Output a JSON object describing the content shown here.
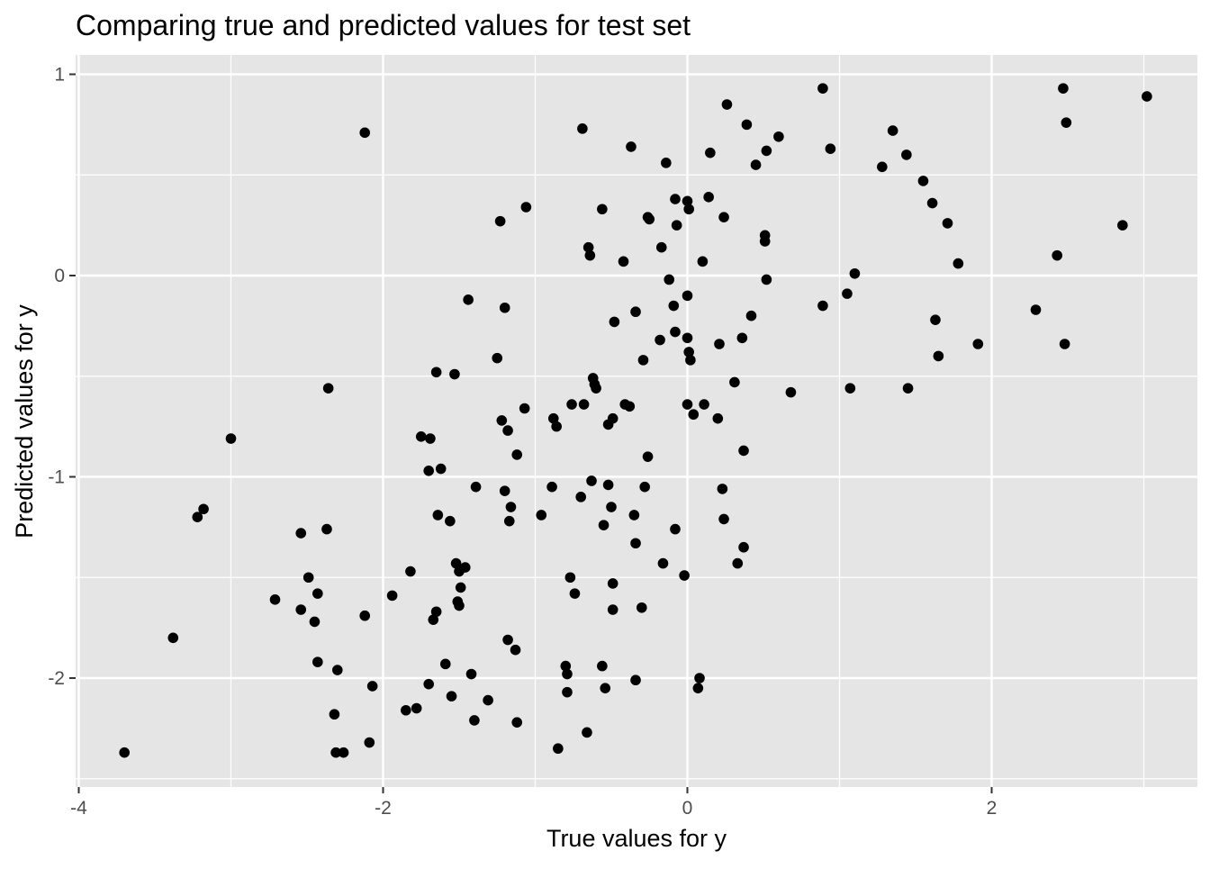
{
  "chart_data": {
    "type": "scatter",
    "title": "Comparing true and predicted values for test set",
    "xlabel": "True values for y",
    "ylabel": "Predicted values for y",
    "xlim": [
      -4.0,
      3.0
    ],
    "ylim": [
      -2.5,
      1.0
    ],
    "x_ticks": [
      -4,
      -2,
      0,
      2
    ],
    "x_tick_labels": [
      "-4",
      "-2",
      "0",
      "2"
    ],
    "y_ticks": [
      -2,
      -1,
      0,
      1
    ],
    "y_tick_labels": [
      "-2",
      "-1",
      "0",
      "1"
    ],
    "grid": true,
    "legend": "none",
    "colors": {
      "panel": "#e5e5e5",
      "grid": "#ffffff",
      "point": "#000000",
      "tick_text": "#4d4d4d",
      "tick_line": "#333333"
    },
    "points": [
      {
        "x": -3.7,
        "y": -2.37
      },
      {
        "x": -3.38,
        "y": -1.8
      },
      {
        "x": -3.22,
        "y": -1.2
      },
      {
        "x": -3.18,
        "y": -1.16
      },
      {
        "x": -3.0,
        "y": -0.81
      },
      {
        "x": -2.71,
        "y": -1.61
      },
      {
        "x": -2.54,
        "y": -1.66
      },
      {
        "x": -2.54,
        "y": -1.28
      },
      {
        "x": -2.49,
        "y": -1.5
      },
      {
        "x": -2.45,
        "y": -1.72
      },
      {
        "x": -2.43,
        "y": -1.58
      },
      {
        "x": -2.43,
        "y": -1.92
      },
      {
        "x": -2.37,
        "y": -1.26
      },
      {
        "x": -2.36,
        "y": -0.56
      },
      {
        "x": -2.32,
        "y": -2.18
      },
      {
        "x": -2.31,
        "y": -2.37
      },
      {
        "x": -2.3,
        "y": -1.96
      },
      {
        "x": -2.26,
        "y": -2.37
      },
      {
        "x": -2.12,
        "y": -1.69
      },
      {
        "x": -2.12,
        "y": 0.71
      },
      {
        "x": -2.09,
        "y": -2.32
      },
      {
        "x": -2.07,
        "y": -2.04
      },
      {
        "x": -1.94,
        "y": -1.59
      },
      {
        "x": -1.85,
        "y": -2.16
      },
      {
        "x": -1.82,
        "y": -1.47
      },
      {
        "x": -1.78,
        "y": -2.15
      },
      {
        "x": -1.75,
        "y": -0.8
      },
      {
        "x": -1.7,
        "y": -2.03
      },
      {
        "x": -1.7,
        "y": -0.97
      },
      {
        "x": -1.69,
        "y": -0.81
      },
      {
        "x": -1.67,
        "y": -1.71
      },
      {
        "x": -1.65,
        "y": -1.67
      },
      {
        "x": -1.65,
        "y": -0.48
      },
      {
        "x": -1.64,
        "y": -1.19
      },
      {
        "x": -1.62,
        "y": -0.96
      },
      {
        "x": -1.59,
        "y": -1.93
      },
      {
        "x": -1.56,
        "y": -1.22
      },
      {
        "x": -1.55,
        "y": -2.09
      },
      {
        "x": -1.53,
        "y": -0.49
      },
      {
        "x": -1.52,
        "y": -1.43
      },
      {
        "x": -1.51,
        "y": -1.62
      },
      {
        "x": -1.5,
        "y": -1.64
      },
      {
        "x": -1.5,
        "y": -1.47
      },
      {
        "x": -1.49,
        "y": -1.55
      },
      {
        "x": -1.46,
        "y": -1.45
      },
      {
        "x": -1.44,
        "y": -0.12
      },
      {
        "x": -1.42,
        "y": -1.98
      },
      {
        "x": -1.4,
        "y": -2.21
      },
      {
        "x": -1.39,
        "y": -1.05
      },
      {
        "x": -1.31,
        "y": -2.11
      },
      {
        "x": -1.25,
        "y": -0.41
      },
      {
        "x": -1.23,
        "y": 0.27
      },
      {
        "x": -1.22,
        "y": -0.72
      },
      {
        "x": -1.2,
        "y": -1.07
      },
      {
        "x": -1.2,
        "y": -0.16
      },
      {
        "x": -1.18,
        "y": -1.81
      },
      {
        "x": -1.18,
        "y": -0.77
      },
      {
        "x": -1.17,
        "y": -1.22
      },
      {
        "x": -1.16,
        "y": -1.15
      },
      {
        "x": -1.13,
        "y": -1.86
      },
      {
        "x": -1.12,
        "y": -2.22
      },
      {
        "x": -1.12,
        "y": -0.89
      },
      {
        "x": -1.07,
        "y": -0.66
      },
      {
        "x": -1.06,
        "y": 0.34
      },
      {
        "x": -0.96,
        "y": -1.19
      },
      {
        "x": -0.89,
        "y": -1.05
      },
      {
        "x": -0.88,
        "y": -0.71
      },
      {
        "x": -0.86,
        "y": -0.75
      },
      {
        "x": -0.85,
        "y": -2.35
      },
      {
        "x": -0.8,
        "y": -1.94
      },
      {
        "x": -0.79,
        "y": -2.07
      },
      {
        "x": -0.79,
        "y": -1.98
      },
      {
        "x": -0.77,
        "y": -1.5
      },
      {
        "x": -0.76,
        "y": -0.64
      },
      {
        "x": -0.74,
        "y": -1.58
      },
      {
        "x": -0.7,
        "y": -1.1
      },
      {
        "x": -0.69,
        "y": 0.73
      },
      {
        "x": -0.68,
        "y": -0.64
      },
      {
        "x": -0.66,
        "y": -2.27
      },
      {
        "x": -0.65,
        "y": 0.14
      },
      {
        "x": -0.64,
        "y": 0.1
      },
      {
        "x": -0.63,
        "y": -1.02
      },
      {
        "x": -0.62,
        "y": -0.51
      },
      {
        "x": -0.61,
        "y": -0.54
      },
      {
        "x": -0.6,
        "y": -0.56
      },
      {
        "x": -0.56,
        "y": 0.33
      },
      {
        "x": -0.56,
        "y": -1.94
      },
      {
        "x": -0.55,
        "y": -1.24
      },
      {
        "x": -0.54,
        "y": -2.05
      },
      {
        "x": -0.52,
        "y": -1.04
      },
      {
        "x": -0.52,
        "y": -0.74
      },
      {
        "x": -0.5,
        "y": -1.15
      },
      {
        "x": -0.49,
        "y": -0.71
      },
      {
        "x": -0.49,
        "y": -1.53
      },
      {
        "x": -0.49,
        "y": -1.66
      },
      {
        "x": -0.48,
        "y": -0.23
      },
      {
        "x": -0.42,
        "y": 0.07
      },
      {
        "x": -0.41,
        "y": -0.64
      },
      {
        "x": -0.38,
        "y": -0.65
      },
      {
        "x": -0.37,
        "y": 0.64
      },
      {
        "x": -0.35,
        "y": -1.19
      },
      {
        "x": -0.34,
        "y": -1.33
      },
      {
        "x": -0.34,
        "y": -0.18
      },
      {
        "x": -0.34,
        "y": -2.01
      },
      {
        "x": -0.3,
        "y": -1.65
      },
      {
        "x": -0.29,
        "y": -0.42
      },
      {
        "x": -0.28,
        "y": -1.05
      },
      {
        "x": -0.26,
        "y": -0.9
      },
      {
        "x": -0.26,
        "y": 0.29
      },
      {
        "x": -0.25,
        "y": 0.28
      },
      {
        "x": -0.18,
        "y": -0.32
      },
      {
        "x": -0.17,
        "y": 0.14
      },
      {
        "x": -0.16,
        "y": -1.43
      },
      {
        "x": -0.14,
        "y": 0.56
      },
      {
        "x": -0.12,
        "y": -0.02
      },
      {
        "x": -0.09,
        "y": -0.15
      },
      {
        "x": -0.08,
        "y": -0.28
      },
      {
        "x": -0.08,
        "y": 0.38
      },
      {
        "x": -0.08,
        "y": -1.26
      },
      {
        "x": -0.07,
        "y": 0.25
      },
      {
        "x": -0.02,
        "y": -1.49
      },
      {
        "x": 0.0,
        "y": -0.1
      },
      {
        "x": 0.0,
        "y": 0.37
      },
      {
        "x": 0.0,
        "y": -0.64
      },
      {
        "x": 0.0,
        "y": -0.31
      },
      {
        "x": 0.01,
        "y": -0.38
      },
      {
        "x": 0.01,
        "y": 0.33
      },
      {
        "x": 0.02,
        "y": -0.42
      },
      {
        "x": 0.04,
        "y": -0.69
      },
      {
        "x": 0.07,
        "y": -2.05
      },
      {
        "x": 0.08,
        "y": -2.0
      },
      {
        "x": 0.1,
        "y": 0.07
      },
      {
        "x": 0.11,
        "y": -0.64
      },
      {
        "x": 0.14,
        "y": 0.39
      },
      {
        "x": 0.15,
        "y": 0.61
      },
      {
        "x": 0.2,
        "y": -0.71
      },
      {
        "x": 0.21,
        "y": -0.34
      },
      {
        "x": 0.23,
        "y": -1.06
      },
      {
        "x": 0.24,
        "y": -1.21
      },
      {
        "x": 0.24,
        "y": 0.29
      },
      {
        "x": 0.26,
        "y": 0.85
      },
      {
        "x": 0.31,
        "y": -0.53
      },
      {
        "x": 0.33,
        "y": -1.43
      },
      {
        "x": 0.36,
        "y": -0.31
      },
      {
        "x": 0.37,
        "y": -0.87
      },
      {
        "x": 0.37,
        "y": -1.35
      },
      {
        "x": 0.39,
        "y": 0.75
      },
      {
        "x": 0.42,
        "y": -0.2
      },
      {
        "x": 0.45,
        "y": 0.55
      },
      {
        "x": 0.51,
        "y": 0.17
      },
      {
        "x": 0.51,
        "y": 0.2
      },
      {
        "x": 0.52,
        "y": 0.62
      },
      {
        "x": 0.52,
        "y": -0.02
      },
      {
        "x": 0.6,
        "y": 0.69
      },
      {
        "x": 0.68,
        "y": -0.58
      },
      {
        "x": 0.89,
        "y": -0.15
      },
      {
        "x": 0.89,
        "y": 0.93
      },
      {
        "x": 0.94,
        "y": 0.63
      },
      {
        "x": 1.05,
        "y": -0.09
      },
      {
        "x": 1.07,
        "y": -0.56
      },
      {
        "x": 1.1,
        "y": 0.01
      },
      {
        "x": 1.28,
        "y": 0.54
      },
      {
        "x": 1.35,
        "y": 0.72
      },
      {
        "x": 1.44,
        "y": 0.6
      },
      {
        "x": 1.45,
        "y": -0.56
      },
      {
        "x": 1.55,
        "y": 0.47
      },
      {
        "x": 1.61,
        "y": 0.36
      },
      {
        "x": 1.63,
        "y": -0.22
      },
      {
        "x": 1.65,
        "y": -0.4
      },
      {
        "x": 1.71,
        "y": 0.26
      },
      {
        "x": 1.78,
        "y": 0.06
      },
      {
        "x": 1.91,
        "y": -0.34
      },
      {
        "x": 2.29,
        "y": -0.17
      },
      {
        "x": 2.43,
        "y": 0.1
      },
      {
        "x": 2.47,
        "y": 0.93
      },
      {
        "x": 2.48,
        "y": -0.34
      },
      {
        "x": 2.49,
        "y": 0.76
      },
      {
        "x": 2.86,
        "y": 0.25
      },
      {
        "x": 3.02,
        "y": 0.89
      }
    ]
  }
}
